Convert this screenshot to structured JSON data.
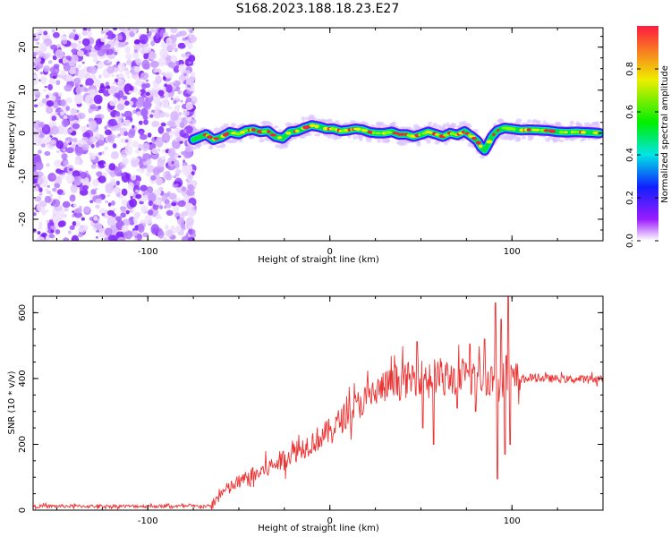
{
  "figure": {
    "title": "S168.2023.188.18.23.E27"
  },
  "chart_data": [
    {
      "type": "heatmap",
      "xlabel": "Height of straight line (km)",
      "ylabel": "Frequency (Hz)",
      "xlim": [
        -163,
        150
      ],
      "ylim": [
        -25,
        24.5
      ],
      "xticks": [
        -100,
        0,
        100
      ],
      "yticks": [
        -20,
        -10,
        0,
        10,
        20
      ],
      "noise_region_x": [
        -163,
        -75
      ],
      "ridge": {
        "x": [
          -75,
          -72,
          -68,
          -64,
          -60,
          -55,
          -50,
          -46,
          -42,
          -38,
          -34,
          -30,
          -26,
          -22,
          -18,
          -14,
          -10,
          -6,
          -2,
          2,
          6,
          10,
          14,
          18,
          22,
          26,
          30,
          34,
          38,
          42,
          46,
          50,
          54,
          58,
          62,
          66,
          70,
          74,
          78,
          81,
          83,
          85,
          87,
          89,
          92,
          96,
          100,
          105,
          110,
          115,
          120,
          125,
          130,
          135,
          140,
          145,
          148
        ],
        "freq": [
          -1.5,
          -1.0,
          -0.3,
          -1.5,
          -1.0,
          0.2,
          -0.2,
          0.6,
          0.8,
          0.3,
          0.5,
          -0.8,
          -1.2,
          0.3,
          0.5,
          1.2,
          1.8,
          1.5,
          1.0,
          1.0,
          0.5,
          0.7,
          1.0,
          0.8,
          0.2,
          0.0,
          0.0,
          0.3,
          -0.3,
          -0.3,
          -0.8,
          -0.3,
          0.3,
          -0.2,
          -0.8,
          0.0,
          -0.4,
          0.4,
          -0.8,
          -1.8,
          -3.2,
          -4.0,
          -2.5,
          -0.8,
          0.6,
          1.2,
          1.0,
          0.7,
          0.8,
          0.7,
          0.6,
          0.3,
          0.2,
          0.3,
          0.2,
          0.1,
          0.0
        ]
      },
      "colorbar": {
        "label": "Normalized spectral amplitude",
        "ticks": [
          0.0,
          0.2,
          0.4,
          0.6,
          0.8
        ],
        "range": [
          0,
          1
        ],
        "colors": [
          "#ffffff",
          "#9b1cff",
          "#1020ff",
          "#00e5e5",
          "#00ee00",
          "#eeee00",
          "#ff1a40"
        ]
      }
    },
    {
      "type": "line",
      "xlabel": "Height of straight line (km)",
      "ylabel": "SNR (10 * v/v)",
      "xlim": [
        -163,
        150
      ],
      "ylim": [
        0,
        650
      ],
      "xticks": [
        -100,
        0,
        100
      ],
      "yticks": [
        0,
        200,
        400,
        600
      ],
      "color": "#ee3333",
      "trend": {
        "x": [
          -163,
          -100,
          -65,
          -60,
          -50,
          -40,
          -30,
          -20,
          -10,
          0,
          10,
          20,
          30,
          40,
          50,
          60,
          70,
          80,
          90,
          100,
          110,
          120,
          130,
          140,
          150
        ],
        "y": [
          12,
          12,
          12,
          50,
          85,
          110,
          140,
          175,
          205,
          240,
          295,
          340,
          375,
          392,
          405,
          410,
          400,
          405,
          400,
          395,
          402,
          400,
          398,
          398,
          400
        ]
      },
      "spikes": [
        {
          "x": 48,
          "y": 512
        },
        {
          "x": 51,
          "y": 250
        },
        {
          "x": 57,
          "y": 200
        },
        {
          "x": 63,
          "y": 350
        },
        {
          "x": 70,
          "y": 310
        },
        {
          "x": 77,
          "y": 505
        },
        {
          "x": 80,
          "y": 300
        },
        {
          "x": 85,
          "y": 520
        },
        {
          "x": 91,
          "y": 630
        },
        {
          "x": 92,
          "y": 95
        },
        {
          "x": 94,
          "y": 580
        },
        {
          "x": 96,
          "y": 170
        },
        {
          "x": 98,
          "y": 650
        },
        {
          "x": 99,
          "y": 200
        }
      ]
    }
  ]
}
